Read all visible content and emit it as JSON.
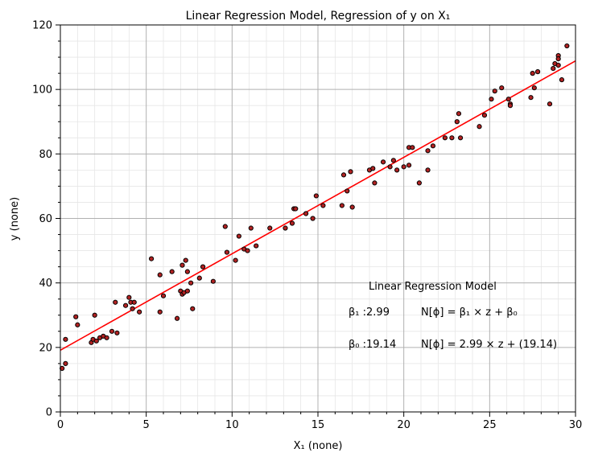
{
  "chart_data": {
    "type": "scatter",
    "title": "Linear Regression Model, Regression of y on X₁",
    "xlabel": "X₁ (none)",
    "ylabel": "y (none)",
    "xlim": [
      0,
      30
    ],
    "ylim": [
      0,
      120
    ],
    "xticks": [
      0,
      5,
      10,
      15,
      20,
      25,
      30
    ],
    "yticks": [
      0,
      20,
      40,
      60,
      80,
      100,
      120
    ],
    "grid": true,
    "marker_color": "#b22222",
    "marker_edge": "#000000",
    "line_color": "#ff0000",
    "fit": {
      "slope": 2.99,
      "intercept": 19.14
    },
    "annotation": {
      "header": "Linear Regression Model",
      "beta1": "β₁ :2.99",
      "beta0": "β₀ :19.14",
      "eq_general": "N[ϕ] = β₁ × z + β₀",
      "eq_fitted": "N[ϕ] = 2.99 × z + (19.14)"
    },
    "points": [
      [
        0.1,
        13.5
      ],
      [
        0.3,
        15.0
      ],
      [
        0.3,
        22.5
      ],
      [
        0.9,
        29.5
      ],
      [
        1.0,
        27.0
      ],
      [
        1.8,
        21.5
      ],
      [
        1.9,
        22.5
      ],
      [
        2.0,
        30.0
      ],
      [
        2.1,
        22.0
      ],
      [
        2.3,
        23.0
      ],
      [
        2.5,
        23.5
      ],
      [
        2.7,
        23.0
      ],
      [
        3.0,
        25.0
      ],
      [
        3.2,
        34.0
      ],
      [
        3.3,
        24.5
      ],
      [
        3.8,
        33.0
      ],
      [
        4.0,
        35.5
      ],
      [
        4.1,
        34.0
      ],
      [
        4.2,
        32.0
      ],
      [
        4.3,
        34.0
      ],
      [
        4.6,
        31.0
      ],
      [
        5.3,
        47.5
      ],
      [
        5.8,
        31.0
      ],
      [
        5.8,
        42.5
      ],
      [
        6.0,
        36.0
      ],
      [
        6.5,
        43.5
      ],
      [
        6.8,
        29.0
      ],
      [
        7.0,
        37.5
      ],
      [
        7.1,
        36.5
      ],
      [
        7.1,
        45.5
      ],
      [
        7.2,
        37.0
      ],
      [
        7.3,
        47.0
      ],
      [
        7.4,
        43.5
      ],
      [
        7.4,
        37.5
      ],
      [
        7.6,
        40.0
      ],
      [
        7.7,
        32.0
      ],
      [
        8.1,
        41.5
      ],
      [
        8.3,
        45.0
      ],
      [
        8.9,
        40.5
      ],
      [
        9.6,
        57.5
      ],
      [
        9.7,
        49.5
      ],
      [
        10.2,
        47.0
      ],
      [
        10.4,
        54.5
      ],
      [
        10.7,
        50.5
      ],
      [
        10.9,
        50.0
      ],
      [
        11.1,
        57.0
      ],
      [
        11.4,
        51.5
      ],
      [
        12.2,
        57.0
      ],
      [
        13.1,
        57.0
      ],
      [
        13.5,
        58.5
      ],
      [
        13.6,
        63.0
      ],
      [
        13.7,
        63.0
      ],
      [
        14.3,
        61.5
      ],
      [
        14.7,
        60.0
      ],
      [
        14.9,
        67.0
      ],
      [
        15.3,
        64.0
      ],
      [
        16.4,
        64.0
      ],
      [
        16.5,
        73.5
      ],
      [
        16.7,
        68.5
      ],
      [
        16.9,
        74.5
      ],
      [
        17.0,
        63.5
      ],
      [
        18.0,
        75.0
      ],
      [
        18.2,
        75.5
      ],
      [
        18.3,
        71.0
      ],
      [
        18.8,
        77.5
      ],
      [
        19.2,
        76.0
      ],
      [
        19.4,
        78.0
      ],
      [
        19.6,
        75.0
      ],
      [
        20.0,
        76.0
      ],
      [
        20.3,
        82.0
      ],
      [
        20.3,
        76.5
      ],
      [
        20.5,
        82.0
      ],
      [
        20.9,
        71.0
      ],
      [
        21.4,
        75.0
      ],
      [
        21.4,
        81.0
      ],
      [
        21.7,
        82.5
      ],
      [
        22.4,
        85.0
      ],
      [
        22.8,
        85.0
      ],
      [
        23.1,
        90.0
      ],
      [
        23.2,
        92.5
      ],
      [
        23.3,
        85.0
      ],
      [
        24.4,
        88.5
      ],
      [
        24.7,
        92.0
      ],
      [
        25.1,
        97.0
      ],
      [
        25.3,
        99.5
      ],
      [
        25.7,
        100.5
      ],
      [
        26.1,
        97.0
      ],
      [
        26.2,
        95.5
      ],
      [
        26.2,
        95.0
      ],
      [
        27.4,
        97.5
      ],
      [
        27.5,
        105.0
      ],
      [
        27.6,
        100.5
      ],
      [
        27.8,
        105.5
      ],
      [
        28.5,
        95.5
      ],
      [
        28.7,
        106.5
      ],
      [
        28.8,
        108.0
      ],
      [
        29.0,
        110.5
      ],
      [
        29.0,
        109.5
      ],
      [
        29.0,
        107.5
      ],
      [
        29.2,
        103.0
      ],
      [
        29.5,
        113.5
      ]
    ]
  }
}
